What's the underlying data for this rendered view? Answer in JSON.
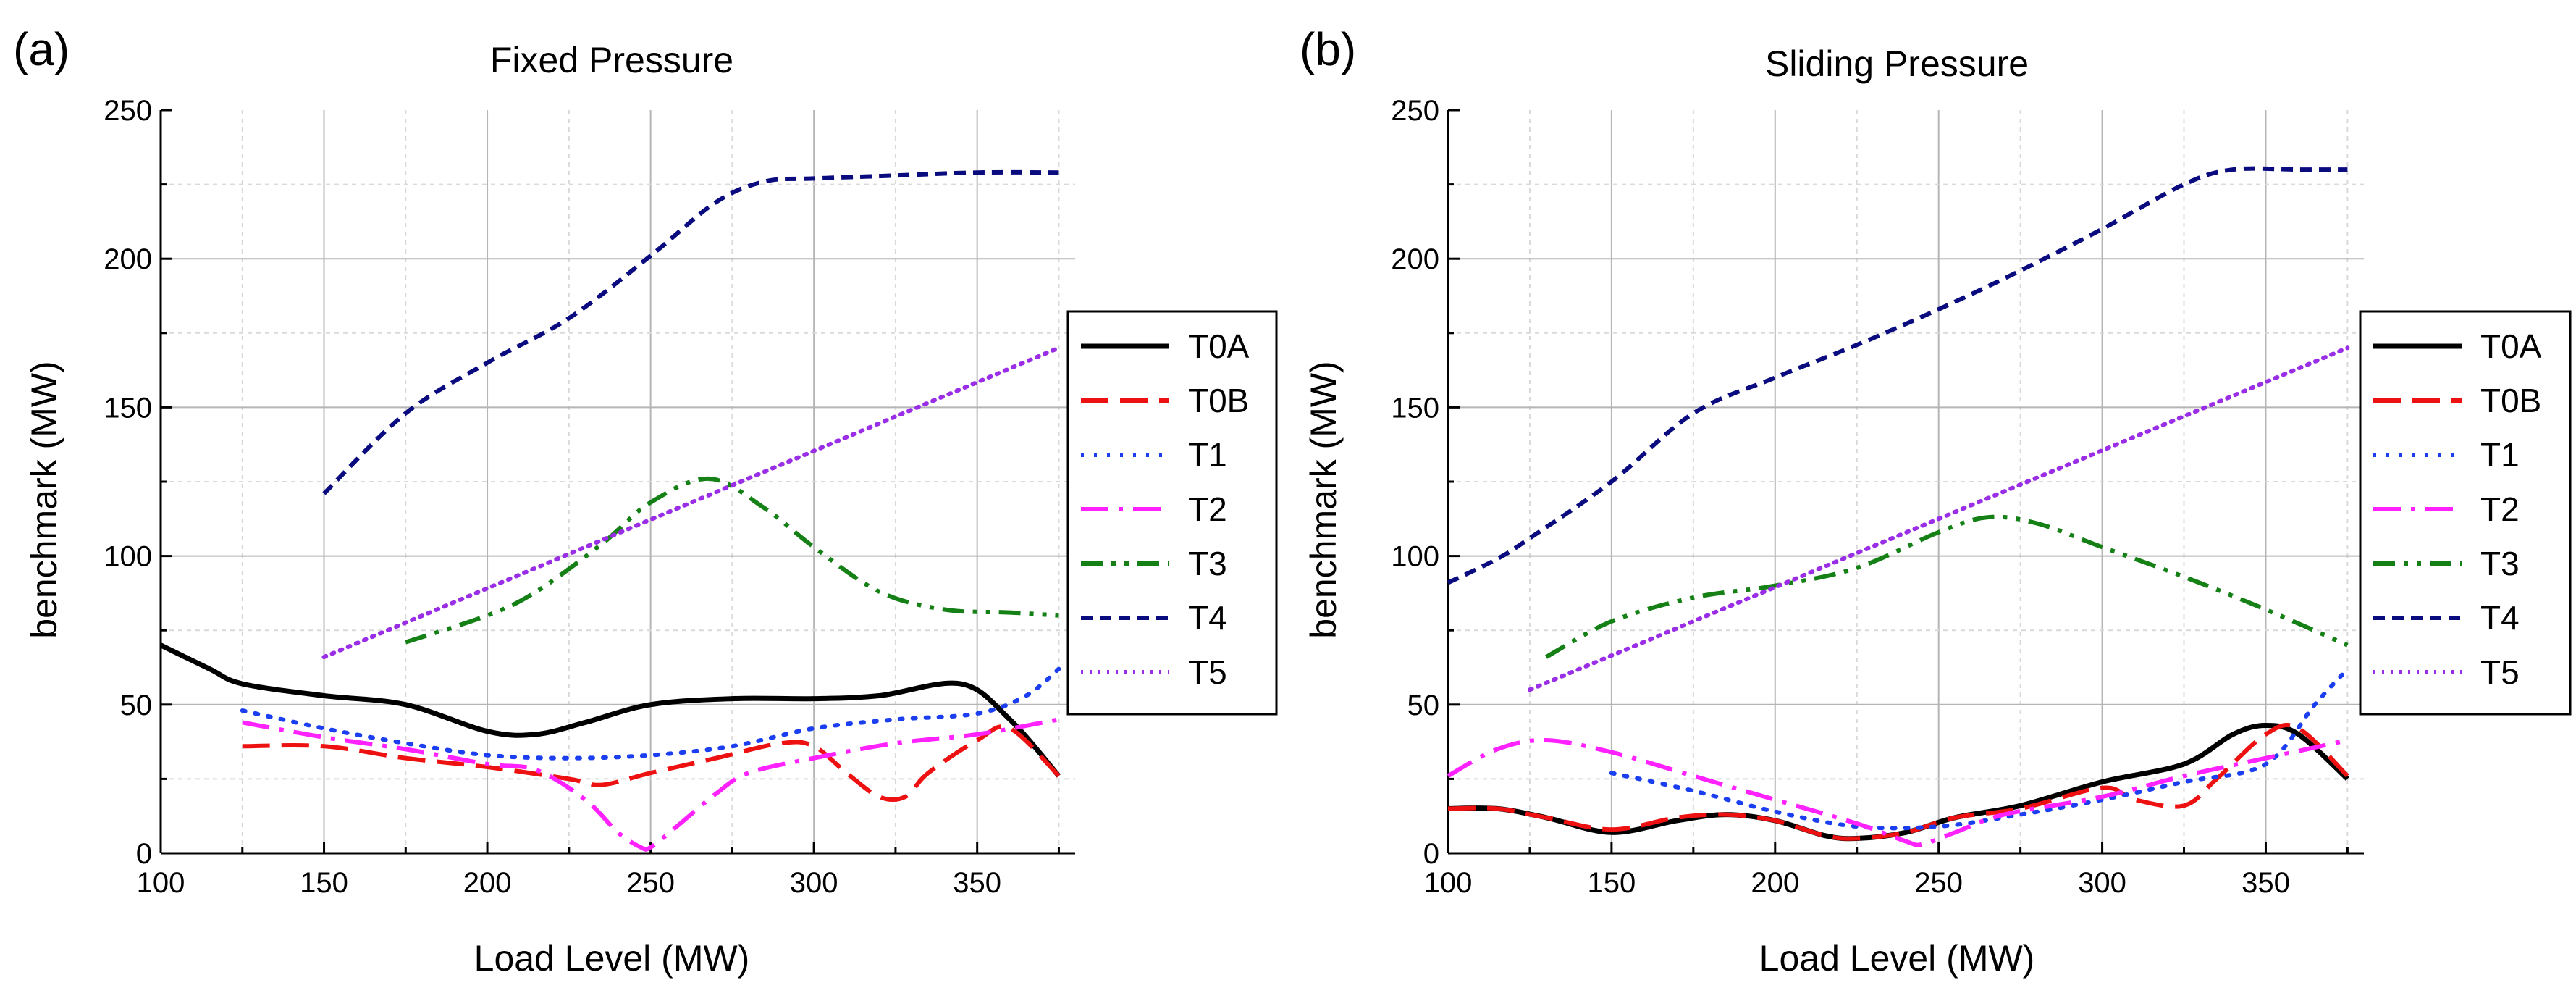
{
  "colors": {
    "T0A": "#000000",
    "T0B": "#ee1111",
    "T1": "#1a3ef0",
    "T2": "#ff22ff",
    "T3": "#158015",
    "T4": "#0b0b80",
    "T5": "#9a2ee6"
  },
  "chart_data": [
    {
      "type": "line",
      "tag": "(a)",
      "title": "Fixed Pressure",
      "xlabel": "Load Level (MW)",
      "ylabel": "benchmark (MW)",
      "xlim": [
        100,
        380
      ],
      "ylim": [
        0,
        250
      ],
      "x_ticks": [
        100,
        150,
        200,
        250,
        300,
        350
      ],
      "y_ticks": [
        0,
        50,
        100,
        150,
        200,
        250
      ],
      "grid": true,
      "legend_position": "right",
      "series": [
        {
          "name": "T0A",
          "dash": "solid",
          "points": [
            [
              100,
              70
            ],
            [
              115,
              62
            ],
            [
              125,
              57
            ],
            [
              150,
              53
            ],
            [
              175,
              50
            ],
            [
              200,
              41
            ],
            [
              215,
              40
            ],
            [
              230,
              44
            ],
            [
              250,
              50
            ],
            [
              275,
              52
            ],
            [
              300,
              52
            ],
            [
              320,
              53
            ],
            [
              345,
              57
            ],
            [
              360,
              45
            ],
            [
              375,
              26
            ]
          ]
        },
        {
          "name": "T0B",
          "dash": "dash",
          "points": [
            [
              125,
              36
            ],
            [
              150,
              36
            ],
            [
              175,
              32
            ],
            [
              200,
              29
            ],
            [
              225,
              25
            ],
            [
              235,
              23
            ],
            [
              250,
              27
            ],
            [
              270,
              32
            ],
            [
              290,
              37
            ],
            [
              300,
              36
            ],
            [
              310,
              27
            ],
            [
              320,
              19
            ],
            [
              328,
              19
            ],
            [
              335,
              27
            ],
            [
              350,
              38
            ],
            [
              360,
              42
            ],
            [
              375,
              26
            ]
          ]
        },
        {
          "name": "T1",
          "dash": "dot",
          "points": [
            [
              125,
              48
            ],
            [
              150,
              42
            ],
            [
              175,
              37
            ],
            [
              200,
              33
            ],
            [
              225,
              32
            ],
            [
              250,
              33
            ],
            [
              275,
              36
            ],
            [
              300,
              42
            ],
            [
              325,
              45
            ],
            [
              350,
              47
            ],
            [
              365,
              53
            ],
            [
              375,
              62
            ]
          ]
        },
        {
          "name": "T2",
          "dash": "dashdot",
          "points": [
            [
              125,
              44
            ],
            [
              150,
              39
            ],
            [
              175,
              35
            ],
            [
              200,
              30
            ],
            [
              215,
              28
            ],
            [
              230,
              18
            ],
            [
              240,
              7
            ],
            [
              247,
              2
            ],
            [
              250,
              2
            ],
            [
              258,
              9
            ],
            [
              270,
              20
            ],
            [
              280,
              27
            ],
            [
              300,
              32
            ],
            [
              325,
              37
            ],
            [
              350,
              40
            ],
            [
              375,
              45
            ]
          ]
        },
        {
          "name": "T3",
          "dash": "dashdotdot",
          "points": [
            [
              175,
              71
            ],
            [
              200,
              80
            ],
            [
              215,
              88
            ],
            [
              235,
              104
            ],
            [
              250,
              118
            ],
            [
              268,
              126
            ],
            [
              285,
              116
            ],
            [
              300,
              103
            ],
            [
              320,
              88
            ],
            [
              340,
              82
            ],
            [
              360,
              81
            ],
            [
              375,
              80
            ]
          ]
        },
        {
          "name": "T4",
          "dash": "shortdash",
          "points": [
            [
              150,
              121
            ],
            [
              175,
              148
            ],
            [
              200,
              165
            ],
            [
              225,
              180
            ],
            [
              250,
              201
            ],
            [
              270,
              219
            ],
            [
              285,
              226
            ],
            [
              300,
              227
            ],
            [
              325,
              228
            ],
            [
              350,
              229
            ],
            [
              375,
              229
            ]
          ]
        },
        {
          "name": "T5",
          "dash": "shortdot",
          "points": [
            [
              150,
              66
            ],
            [
              375,
              170
            ]
          ]
        }
      ]
    },
    {
      "type": "line",
      "tag": "(b)",
      "title": "Sliding Pressure",
      "xlabel": "Load Level (MW)",
      "ylabel": "benchmark (MW)",
      "xlim": [
        100,
        380
      ],
      "ylim": [
        0,
        250
      ],
      "x_ticks": [
        100,
        150,
        200,
        250,
        300,
        350
      ],
      "y_ticks": [
        0,
        50,
        100,
        150,
        200,
        250
      ],
      "grid": true,
      "legend_position": "right",
      "series": [
        {
          "name": "T0A",
          "dash": "solid",
          "points": [
            [
              100,
              15
            ],
            [
              115,
              15
            ],
            [
              130,
              12
            ],
            [
              150,
              7
            ],
            [
              170,
              11
            ],
            [
              185,
              13
            ],
            [
              200,
              11
            ],
            [
              215,
              6
            ],
            [
              225,
              5
            ],
            [
              240,
              7
            ],
            [
              255,
              12
            ],
            [
              275,
              16
            ],
            [
              300,
              24
            ],
            [
              325,
              30
            ],
            [
              340,
              40
            ],
            [
              350,
              43
            ],
            [
              360,
              40
            ],
            [
              375,
              25
            ]
          ]
        },
        {
          "name": "T0B",
          "dash": "dash",
          "points": [
            [
              100,
              15
            ],
            [
              115,
              15
            ],
            [
              130,
              12
            ],
            [
              150,
              8
            ],
            [
              170,
              12
            ],
            [
              185,
              13
            ],
            [
              200,
              11
            ],
            [
              215,
              6
            ],
            [
              225,
              5
            ],
            [
              240,
              7
            ],
            [
              255,
              12
            ],
            [
              275,
              15
            ],
            [
              300,
              22
            ],
            [
              310,
              18
            ],
            [
              325,
              16
            ],
            [
              335,
              25
            ],
            [
              350,
              40
            ],
            [
              360,
              42
            ],
            [
              375,
              26
            ]
          ]
        },
        {
          "name": "T1",
          "dash": "dot",
          "points": [
            [
              150,
              27
            ],
            [
              175,
              21
            ],
            [
              200,
              14
            ],
            [
              225,
              9
            ],
            [
              250,
              9
            ],
            [
              275,
              13
            ],
            [
              300,
              18
            ],
            [
              325,
              24
            ],
            [
              350,
              30
            ],
            [
              365,
              50
            ],
            [
              375,
              62
            ]
          ]
        },
        {
          "name": "T2",
          "dash": "dashdot",
          "points": [
            [
              100,
              26
            ],
            [
              115,
              35
            ],
            [
              130,
              38
            ],
            [
              150,
              34
            ],
            [
              175,
              26
            ],
            [
              200,
              18
            ],
            [
              225,
              10
            ],
            [
              240,
              4
            ],
            [
              245,
              3
            ],
            [
              255,
              7
            ],
            [
              270,
              13
            ],
            [
              300,
              19
            ],
            [
              325,
              26
            ],
            [
              350,
              32
            ],
            [
              375,
              38
            ]
          ]
        },
        {
          "name": "T3",
          "dash": "dashdotdot",
          "points": [
            [
              130,
              66
            ],
            [
              150,
              78
            ],
            [
              175,
              86
            ],
            [
              200,
              90
            ],
            [
              225,
              96
            ],
            [
              250,
              108
            ],
            [
              265,
              113
            ],
            [
              280,
              111
            ],
            [
              300,
              103
            ],
            [
              325,
              93
            ],
            [
              350,
              82
            ],
            [
              375,
              70
            ]
          ]
        },
        {
          "name": "T4",
          "dash": "shortdash",
          "points": [
            [
              100,
              91
            ],
            [
              115,
              99
            ],
            [
              125,
              106
            ],
            [
              150,
              125
            ],
            [
              175,
              148
            ],
            [
              200,
              160
            ],
            [
              225,
              171
            ],
            [
              250,
              183
            ],
            [
              275,
              196
            ],
            [
              300,
              210
            ],
            [
              325,
              225
            ],
            [
              340,
              230
            ],
            [
              360,
              230
            ],
            [
              375,
              230
            ]
          ]
        },
        {
          "name": "T5",
          "dash": "shortdot",
          "points": [
            [
              125,
              55
            ],
            [
              375,
              170
            ]
          ]
        }
      ]
    }
  ]
}
